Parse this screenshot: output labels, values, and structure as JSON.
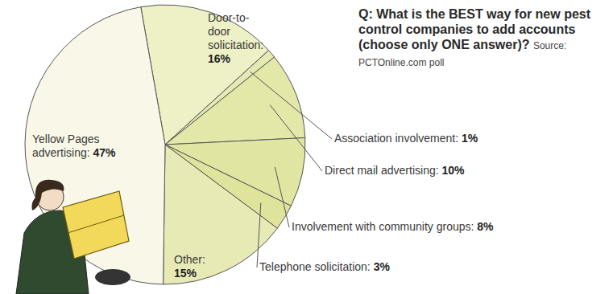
{
  "chart_data": {
    "type": "pie",
    "title": "Q: What is the BEST way for new pest control companies to add accounts (choose only ONE answer)?",
    "subtitle": "Source: PCTOnline.com poll",
    "categories": [
      "Door-to-door solicitation:",
      "Association involvement:",
      "Direct mail advertising:",
      "Involvement with community groups:",
      "Telephone solicitation:",
      "Other:",
      "Yellow Pages advertising:"
    ],
    "values": [
      16,
      1,
      10,
      8,
      3,
      15,
      47
    ],
    "value_labels": [
      "16%",
      "1%",
      "10%",
      "8%",
      "3%",
      "15%",
      "47%"
    ],
    "colors": [
      "#eef0c6",
      "#e6e9b2",
      "#e3e7a8",
      "#e1e5a2",
      "#dfe39c",
      "#e8eab6",
      "#f9f8e8"
    ],
    "data_labels": true
  }
}
